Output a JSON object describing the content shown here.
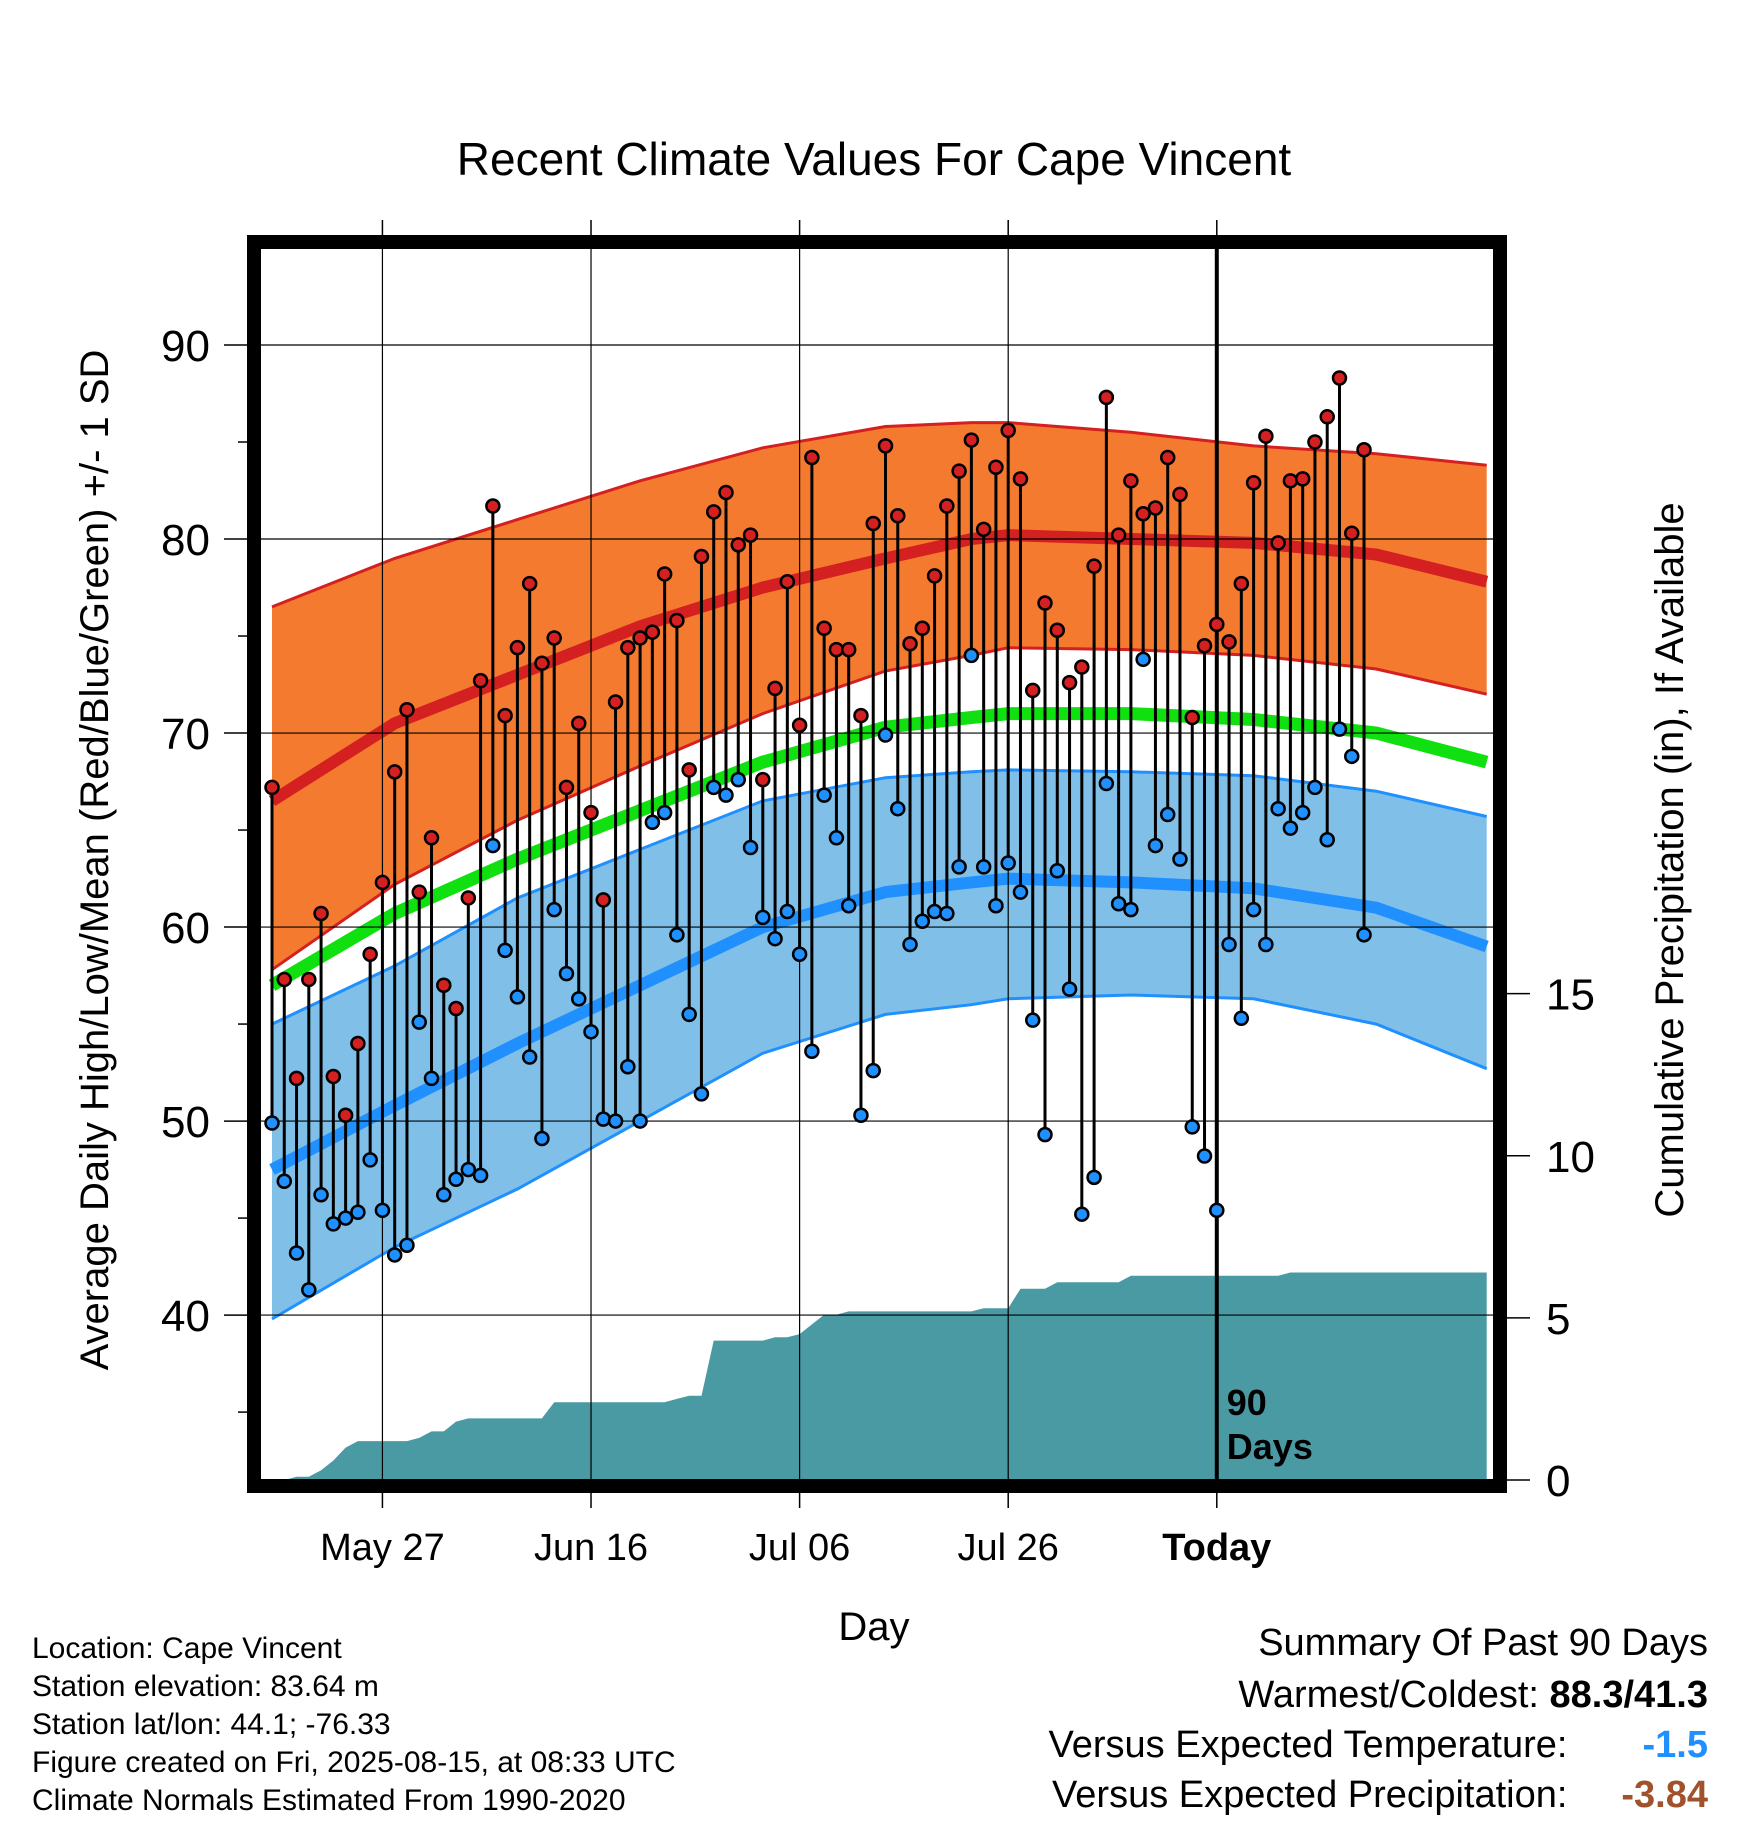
{
  "chart_data": {
    "type": "line",
    "title": "Recent Climate Values For Cape Vincent",
    "xlabel": "Day",
    "ylabel": "Average Daily High/Low/Mean (Red/Blue/Green) +/- 1 SD",
    "y2label": "Cumulative Precipitation (in), If Available",
    "x_ticks": [
      "May 27",
      "Jun 16",
      "Jul 06",
      "Jul 26",
      "Today"
    ],
    "y_ticks": [
      40,
      50,
      60,
      70,
      80,
      90
    ],
    "y2_ticks": [
      0,
      5,
      10,
      15
    ],
    "ylim": [
      31.5,
      95
    ],
    "y2lim": [
      0,
      38
    ],
    "today_label": "90\nDays",
    "colors": {
      "high_band": "#f47a30",
      "high_mean": "#d42020",
      "low_band": "#80c0e8",
      "low_mean": "#2090ff",
      "mean": "#10e010",
      "precip": "#4a9aa4",
      "high_dot": "#d42020",
      "low_dot": "#2090ff"
    },
    "normals": {
      "day_index": [
        0,
        10,
        20,
        30,
        40,
        50,
        57,
        60,
        70,
        80,
        90,
        99
      ],
      "high_mean": [
        66.5,
        70.5,
        73.0,
        75.5,
        77.5,
        79.0,
        80.0,
        80.2,
        80.0,
        79.8,
        79.2,
        77.8
      ],
      "high_upper": [
        76.5,
        79.0,
        81.0,
        83.0,
        84.7,
        85.8,
        86.0,
        86.0,
        85.5,
        84.8,
        84.4,
        83.8
      ],
      "high_lower": [
        57.8,
        62.2,
        65.5,
        68.3,
        71.0,
        73.2,
        74.0,
        74.4,
        74.3,
        74.0,
        73.3,
        72.0
      ],
      "mean": [
        57.0,
        60.7,
        63.5,
        66.0,
        68.5,
        70.3,
        70.8,
        71.0,
        71.0,
        70.7,
        70.0,
        68.5
      ],
      "low_mean": [
        47.5,
        50.8,
        54.0,
        57.0,
        60.0,
        61.8,
        62.3,
        62.5,
        62.3,
        62.0,
        61.0,
        59.0
      ],
      "low_upper": [
        55.0,
        58.0,
        61.5,
        64.0,
        66.5,
        67.7,
        68.0,
        68.1,
        68.0,
        67.8,
        67.0,
        65.7
      ],
      "low_lower": [
        39.8,
        43.5,
        46.5,
        50.0,
        53.5,
        55.5,
        56.0,
        56.3,
        56.5,
        56.3,
        55.0,
        52.7
      ]
    },
    "daily_high": [
      67.2,
      57.3,
      52.2,
      57.3,
      60.7,
      52.3,
      50.3,
      54.0,
      58.6,
      62.3,
      68.0,
      71.2,
      61.8,
      64.6,
      57.0,
      55.8,
      61.5,
      72.7,
      81.7,
      70.9,
      74.4,
      77.7,
      73.6,
      74.9,
      67.2,
      70.5,
      65.9,
      61.4,
      71.6,
      74.4,
      74.9,
      75.2,
      78.2,
      75.8,
      68.1,
      79.1,
      81.4,
      82.4,
      79.7,
      80.2,
      67.6,
      72.3,
      77.8,
      70.4,
      84.2,
      75.4,
      74.3,
      74.3,
      70.9,
      80.8,
      84.8,
      81.2,
      74.6,
      75.4,
      78.1,
      81.7,
      83.5,
      85.1,
      80.5,
      83.7,
      85.6,
      83.1,
      72.2,
      76.7,
      75.3,
      72.6,
      73.4,
      78.6,
      87.3,
      80.2,
      83.0,
      81.3,
      81.6,
      84.2,
      82.3,
      70.8,
      74.5,
      75.6,
      74.7,
      77.7,
      82.9,
      85.3,
      79.8,
      83.0,
      83.1,
      85.0,
      86.3,
      88.3,
      80.3,
      84.6
    ],
    "daily_low": [
      49.9,
      46.9,
      43.2,
      41.3,
      46.2,
      44.7,
      45.0,
      45.3,
      48.0,
      45.4,
      43.1,
      43.6,
      55.1,
      52.2,
      46.2,
      47.0,
      47.5,
      47.2,
      64.2,
      58.8,
      56.4,
      53.3,
      49.1,
      60.9,
      57.6,
      56.3,
      54.6,
      50.1,
      50.0,
      52.8,
      50.0,
      65.4,
      65.9,
      59.6,
      55.5,
      51.4,
      67.2,
      66.8,
      67.6,
      64.1,
      60.5,
      59.4,
      60.8,
      58.6,
      53.6,
      66.8,
      64.6,
      61.1,
      50.3,
      52.6,
      69.9,
      66.1,
      59.1,
      60.3,
      60.8,
      60.7,
      63.1,
      74.0,
      63.1,
      61.1,
      63.3,
      61.8,
      55.2,
      49.3,
      62.9,
      56.8,
      45.2,
      47.1,
      67.4,
      61.2,
      60.9,
      73.8,
      64.2,
      65.8,
      63.5,
      49.7,
      48.2,
      45.4,
      59.1,
      55.3,
      60.9,
      59.1,
      66.1,
      65.1,
      65.9,
      67.2,
      64.5,
      70.2,
      68.8,
      59.6
    ],
    "precip_cumulative": [
      0.0,
      0.0,
      0.1,
      0.1,
      0.3,
      0.6,
      1.0,
      1.2,
      1.2,
      1.2,
      1.2,
      1.2,
      1.3,
      1.5,
      1.5,
      1.8,
      1.9,
      1.9,
      1.9,
      1.9,
      1.9,
      1.9,
      1.9,
      2.4,
      2.4,
      2.4,
      2.4,
      2.4,
      2.4,
      2.4,
      2.4,
      2.4,
      2.4,
      2.5,
      2.6,
      2.6,
      4.3,
      4.3,
      4.3,
      4.3,
      4.3,
      4.4,
      4.4,
      4.5,
      4.8,
      5.1,
      5.1,
      5.2,
      5.2,
      5.2,
      5.2,
      5.2,
      5.2,
      5.2,
      5.2,
      5.2,
      5.2,
      5.2,
      5.3,
      5.3,
      5.3,
      5.9,
      5.9,
      5.9,
      6.1,
      6.1,
      6.1,
      6.1,
      6.1,
      6.1,
      6.3,
      6.3,
      6.3,
      6.3,
      6.3,
      6.3,
      6.3,
      6.3,
      6.3,
      6.3,
      6.3,
      6.3,
      6.3,
      6.4,
      6.4,
      6.4,
      6.4,
      6.4,
      6.4,
      6.4,
      6.4,
      6.4,
      6.4,
      6.4,
      6.4,
      6.4,
      6.4,
      6.4,
      6.4,
      6.4
    ]
  },
  "info": {
    "location": "Location: Cape Vincent",
    "elevation": "Station elevation: 83.64 m",
    "latlon": "Station lat/lon: 44.1; -76.33",
    "created": "Figure created on Fri, 2025-08-15, at 08:33 UTC",
    "normals": "Climate Normals Estimated From 1990-2020"
  },
  "summary": {
    "title": "Summary Of Past 90 Days",
    "warmest_label": "Warmest/Coldest:",
    "warmest_value": "88.3/41.3",
    "temp_label": "Versus Expected Temperature:",
    "temp_value": "-1.5",
    "temp_color": "#2090ff",
    "precip_label": "Versus Expected Precipitation:",
    "precip_value": "-3.84",
    "precip_color": "#a0522d"
  }
}
